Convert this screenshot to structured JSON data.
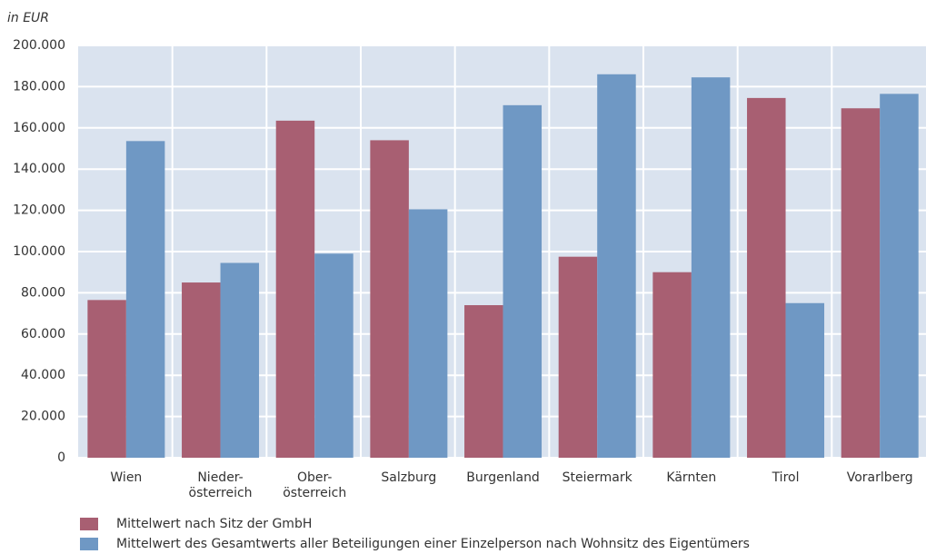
{
  "chart_data": {
    "type": "bar",
    "y_label": "in EUR",
    "categories": [
      "Wien",
      "Nieder-\nösterreich",
      "Ober-\nösterreich",
      "Salzburg",
      "Burgenland",
      "Steiermark",
      "Kärnten",
      "Tirol",
      "Vorarlberg"
    ],
    "series": [
      {
        "name": "Mittelwert nach Sitz der GmbH",
        "color": "#a85f72",
        "values": [
          76500,
          85000,
          163500,
          154000,
          74000,
          97500,
          90000,
          174500,
          169500
        ]
      },
      {
        "name": "Mittelwert des Gesamtwerts aller Beteiligungen einer Einzelperson nach Wohnsitz des Eigentümers",
        "color": "#6f98c4",
        "values": [
          153600,
          94500,
          99000,
          120500,
          171000,
          186000,
          184500,
          75000,
          176500
        ]
      }
    ],
    "ylim": [
      0,
      200000
    ],
    "yticks": [
      0,
      {
        "value": 20000,
        "label": "20.000"
      },
      {
        "value": 40000,
        "label": "40.000"
      },
      {
        "value": 60000,
        "label": "60.000"
      },
      {
        "value": 80000,
        "label": "80.000"
      },
      {
        "value": 100000,
        "label": "100.000"
      },
      {
        "value": 120000,
        "label": "120.000"
      },
      {
        "value": 140000,
        "label": "140.000"
      },
      {
        "value": 160000,
        "label": "160.000"
      },
      {
        "value": 180000,
        "label": "180.000"
      },
      {
        "value": 200000,
        "label": "200.000"
      }
    ],
    "grid": true,
    "legend": "bottom"
  }
}
